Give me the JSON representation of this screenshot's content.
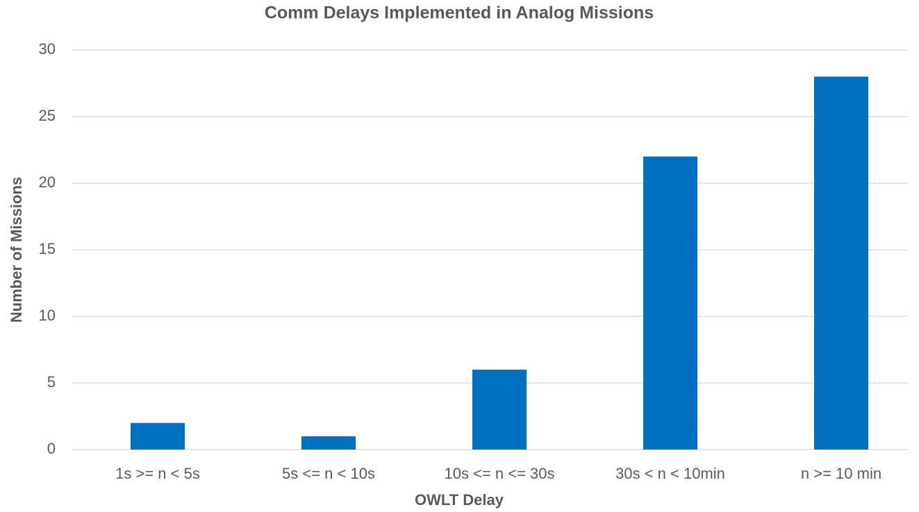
{
  "chart_data": {
    "type": "bar",
    "title": "Comm Delays Implemented in Analog Missions",
    "x_label": "OWLT Delay",
    "y_label": "Number of Missions",
    "categories": [
      "1s >= n < 5s",
      "5s <= n < 10s",
      "10s <= n <= 30s",
      "30s < n < 10min",
      "n >= 10 min"
    ],
    "values": [
      2,
      1,
      6,
      22,
      28
    ],
    "color": "#0070c0",
    "ylim": [
      0,
      30
    ],
    "yticks": [
      0,
      5,
      10,
      15,
      20,
      25,
      30
    ],
    "grid": true
  }
}
